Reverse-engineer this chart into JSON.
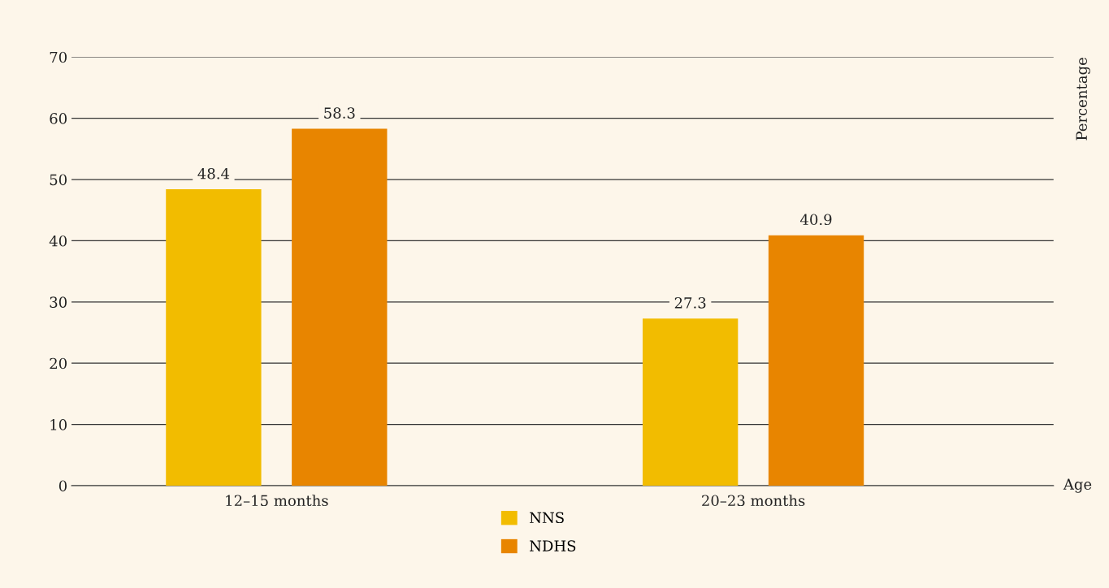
{
  "chart_data": {
    "type": "bar",
    "xlabel": "Age",
    "ylabel": "Percentage",
    "categories": [
      "12–15 months",
      "20–23 months"
    ],
    "series": [
      {
        "name": "NNS",
        "color": "#f2bc00",
        "values": [
          48.4,
          27.3
        ]
      },
      {
        "name": "NDHS",
        "color": "#e88500",
        "values": [
          58.3,
          40.9
        ]
      }
    ],
    "ylim": [
      0,
      70
    ],
    "yticks": [
      0,
      10,
      20,
      30,
      40,
      50,
      60,
      70
    ],
    "grid": "y",
    "data_labels": true,
    "legend": "bottom"
  }
}
